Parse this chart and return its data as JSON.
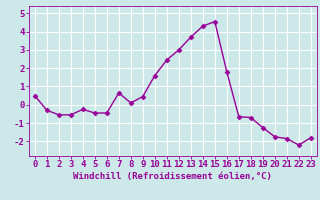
{
  "x": [
    0,
    1,
    2,
    3,
    4,
    5,
    6,
    7,
    8,
    9,
    10,
    11,
    12,
    13,
    14,
    15,
    16,
    17,
    18,
    19,
    20,
    21,
    22,
    23
  ],
  "y": [
    0.5,
    -0.3,
    -0.55,
    -0.55,
    -0.25,
    -0.45,
    -0.45,
    0.65,
    0.1,
    0.45,
    1.6,
    2.45,
    3.0,
    3.7,
    4.3,
    4.55,
    1.8,
    -0.65,
    -0.7,
    -1.25,
    -1.75,
    -1.85,
    -2.2,
    -1.8
  ],
  "line_color": "#990099",
  "marker": "D",
  "marker_size": 2.5,
  "bg_color": "#cce8e8",
  "grid_color": "#ffffff",
  "xlabel": "Windchill (Refroidissement éolien,°C)",
  "xlabel_color": "#990099",
  "tick_color": "#990099",
  "ylim": [
    -2.8,
    5.4
  ],
  "xlim": [
    -0.5,
    23.5
  ],
  "yticks": [
    -2,
    -1,
    0,
    1,
    2,
    3,
    4,
    5
  ],
  "xticks": [
    0,
    1,
    2,
    3,
    4,
    5,
    6,
    7,
    8,
    9,
    10,
    11,
    12,
    13,
    14,
    15,
    16,
    17,
    18,
    19,
    20,
    21,
    22,
    23
  ],
  "line_width": 1.0,
  "font_size": 6.5
}
